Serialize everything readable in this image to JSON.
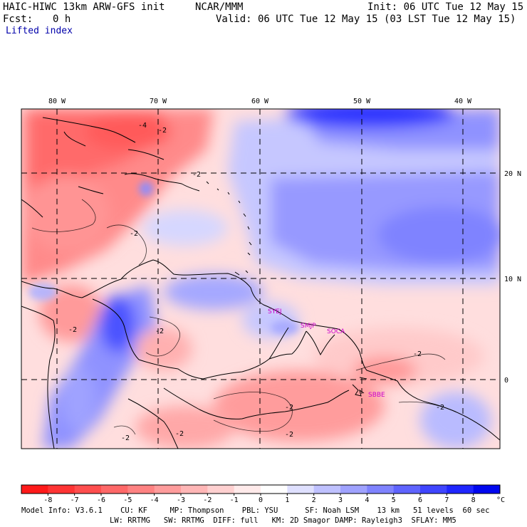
{
  "header": {
    "model_title": "HAIC-HIWC 13km ARW-GFS init",
    "center": "NCAR/MMM",
    "init": "Init: 06 UTC Tue 12 May 15",
    "fcst_label": "Fcst:",
    "fcst_value": "0 h",
    "valid": "Valid: 06 UTC Tue 12 May 15 (03 LST Tue 12 May 15)",
    "field": "Lifted index"
  },
  "map": {
    "lon_labels": [
      "80 W",
      "70 W",
      "60 W",
      "50 W",
      "40 W"
    ],
    "lat_labels": [
      "20 N",
      "10 N",
      "0"
    ],
    "contour_labels": [
      "-4",
      "-2",
      "-2",
      "-2",
      "-2",
      "-2",
      "-2",
      "-2",
      "-2",
      "-2",
      "-2",
      "-2"
    ],
    "stations": [
      "SYEJ",
      "SMJP",
      "SOCA",
      "SBBE"
    ],
    "colors": {
      "station_text": "#cc00cc",
      "grid_dash": "#000000",
      "deep_red": "#ff2020",
      "deep_blue": "#0010e0"
    }
  },
  "colorbar": {
    "ticks": [
      "-8",
      "-7",
      "-6",
      "-5",
      "-4",
      "-3",
      "-2",
      "-1",
      "0",
      "1",
      "2",
      "3",
      "4",
      "5",
      "6",
      "7",
      "8"
    ],
    "unit": "°C",
    "colors": [
      "#ff1a1a",
      "#ff3434",
      "#ff4e4e",
      "#ff6868",
      "#ff8282",
      "#ff9c9c",
      "#ffb6b6",
      "#ffd0d0",
      "#ffeaea",
      "#ffffff",
      "#dfe0ff",
      "#bfc1ff",
      "#9fa2ff",
      "#7f83ff",
      "#5f64ff",
      "#3f45ff",
      "#1f26ff",
      "#0007ef"
    ]
  },
  "footer": {
    "line1": "Model Info: V3.6.1    CU: KF     MP: Thompson    PBL: YSU      SF: Noah LSM    13 km   51 levels  60 sec",
    "line2": "LW: RRTMG   SW: RRTMG  DIFF: full   KM: 2D Smagor DAMP: Rayleigh3  SFLAY: MM5"
  }
}
